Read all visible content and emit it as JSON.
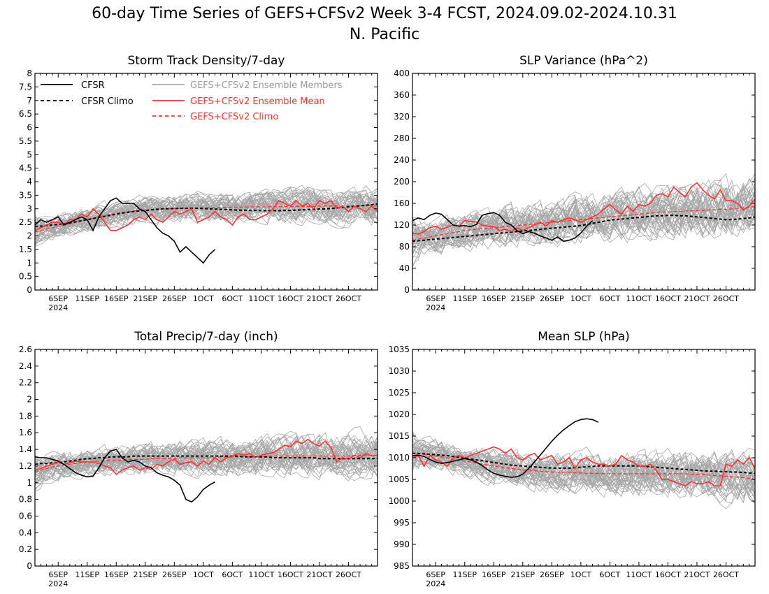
{
  "title_line1": "60-day Time Series of GEFS+CFSv2 Week 3-4 FCST, 2024.09.02-2024.10.31",
  "title_line2": "N. Pacific",
  "colors": {
    "cfsr": "#000000",
    "members": "#a6a6a6",
    "ens_mean": "#ff3030",
    "ens_climo": "#ff3030"
  },
  "legend": {
    "cfsr": "CFSR",
    "cfsr_climo": "CFSR Climo",
    "members": "GEFS+CFSv2 Ensemble Members",
    "ens_mean": "GEFS+CFSv2 Ensemble Mean",
    "ens_climo": "GEFS+CFSv2 Climo"
  },
  "x_tick_labels": [
    "6SEP",
    "11SEP",
    "16SEP",
    "21SEP",
    "26SEP",
    "1OCT",
    "6OCT",
    "11OCT",
    "16OCT",
    "21OCT",
    "26OCT"
  ],
  "x_tick_days": [
    4,
    9,
    14,
    19,
    24,
    29,
    34,
    39,
    44,
    49,
    54
  ],
  "x_year_label": "2024",
  "chart_data": [
    {
      "type": "line",
      "title": "Storm Track Density/7-day",
      "ylim": [
        0,
        8
      ],
      "yticks": [
        "0",
        "0.5",
        "1",
        "1.5",
        "2",
        "2.5",
        "3",
        "3.5",
        "4",
        "4.5",
        "5",
        "5.5",
        "6",
        "6.5",
        "7",
        "7.5",
        "8"
      ],
      "ytick_values": [
        0,
        0.5,
        1,
        1.5,
        2,
        2.5,
        3,
        3.5,
        4,
        4.5,
        5,
        5.5,
        6,
        6.5,
        7,
        7.5,
        8
      ],
      "cfsr_x": [
        0,
        1,
        2,
        3,
        4,
        5,
        6,
        7,
        8,
        9,
        10,
        11,
        12,
        13,
        14,
        15,
        16,
        17,
        18,
        19,
        20,
        21,
        22,
        23,
        24,
        25,
        26,
        27,
        28,
        29,
        30,
        31
      ],
      "cfsr": [
        2.4,
        2.6,
        2.5,
        2.6,
        2.7,
        2.4,
        2.5,
        2.6,
        2.7,
        2.6,
        2.2,
        2.7,
        3.0,
        3.3,
        3.4,
        3.2,
        3.2,
        3.2,
        3.0,
        2.9,
        2.6,
        2.3,
        2.1,
        2.0,
        1.8,
        1.4,
        1.6,
        1.4,
        1.2,
        1.0,
        1.3,
        1.5
      ],
      "cfsr_climo": [
        2.35,
        2.36,
        2.38,
        2.4,
        2.42,
        2.45,
        2.48,
        2.52,
        2.56,
        2.6,
        2.64,
        2.68,
        2.72,
        2.76,
        2.8,
        2.84,
        2.87,
        2.9,
        2.92,
        2.94,
        2.96,
        2.98,
        3.0,
        3.0,
        3.01,
        3.02,
        3.02,
        3.02,
        3.02,
        3.01,
        3.0,
        2.99,
        2.98,
        2.97,
        2.96,
        2.95,
        2.95,
        2.94,
        2.94,
        2.93,
        2.93,
        2.93,
        2.93,
        2.94,
        2.94,
        2.95,
        2.96,
        2.97,
        2.98,
        2.99,
        3.0,
        3.01,
        3.03,
        3.05,
        3.07,
        3.09,
        3.11,
        3.13,
        3.15,
        3.18
      ],
      "ens_mean": [
        2.2,
        2.3,
        2.4,
        2.5,
        2.5,
        2.4,
        2.6,
        2.6,
        2.8,
        2.7,
        3.0,
        2.8,
        2.5,
        2.2,
        2.2,
        2.3,
        2.4,
        2.6,
        2.7,
        2.6,
        2.8,
        2.6,
        2.5,
        2.7,
        2.9,
        2.8,
        2.9,
        3.0,
        2.5,
        2.6,
        2.7,
        2.9,
        2.7,
        2.6,
        2.4,
        2.7,
        2.8,
        2.6,
        2.6,
        2.7,
        2.8,
        3.0,
        3.3,
        3.2,
        3.1,
        3.3,
        3.1,
        3.2,
        3.0,
        3.3,
        3.2,
        3.3,
        3.0,
        3.1,
        2.9,
        3.1,
        3.0,
        2.9,
        3.1,
        2.9
      ],
      "ens_climo": [
        2.15,
        2.2,
        2.25,
        2.3,
        2.35,
        2.4,
        2.45,
        2.5,
        2.55,
        2.6,
        2.65,
        2.7,
        2.75,
        2.79,
        2.83,
        2.86,
        2.89,
        2.92,
        2.94,
        2.96,
        2.97,
        2.98,
        2.99,
        3.0,
        3.01,
        3.02,
        3.02,
        3.03,
        3.03,
        3.04,
        3.04,
        3.05,
        3.05,
        3.05,
        3.06,
        3.06,
        3.06,
        3.07,
        3.07,
        3.07,
        3.07,
        3.08,
        3.08,
        3.08,
        3.08,
        3.09,
        3.09,
        3.09,
        3.09,
        3.1,
        3.1,
        3.1,
        3.1,
        3.1,
        3.1,
        3.11,
        3.11,
        3.11,
        3.11,
        3.12
      ],
      "member_spread": [
        0.2,
        4.8
      ],
      "member_center": 2.75,
      "legend_position": "top-left"
    },
    {
      "type": "line",
      "title": "SLP Variance (hPa^2)",
      "ylim": [
        0,
        400
      ],
      "yticks": [
        "0",
        "40",
        "80",
        "120",
        "160",
        "200",
        "240",
        "280",
        "320",
        "360",
        "400"
      ],
      "ytick_values": [
        0,
        40,
        80,
        120,
        160,
        200,
        240,
        280,
        320,
        360,
        400
      ],
      "cfsr_x": [
        0,
        1,
        2,
        3,
        4,
        5,
        6,
        7,
        8,
        9,
        10,
        11,
        12,
        13,
        14,
        15,
        16,
        17,
        18,
        19,
        20,
        21,
        22,
        23,
        24,
        25,
        26,
        27,
        28,
        29,
        30,
        31
      ],
      "cfsr": [
        128,
        133,
        130,
        138,
        142,
        140,
        130,
        120,
        118,
        119,
        117,
        121,
        138,
        141,
        143,
        138,
        125,
        120,
        110,
        104,
        108,
        105,
        100,
        96,
        92,
        98,
        90,
        92,
        96,
        105,
        118,
        128
      ],
      "cfsr_climo": [
        90,
        91,
        92,
        93,
        94,
        95,
        96,
        97,
        98,
        99,
        100,
        101,
        102,
        103,
        104,
        105,
        106,
        107,
        108,
        109,
        110,
        111,
        112,
        113,
        114,
        115,
        116,
        117,
        118,
        119,
        121,
        123,
        125,
        127,
        129,
        130,
        131,
        132,
        133,
        134,
        135,
        136,
        137,
        137,
        138,
        138,
        137,
        137,
        136,
        135,
        134,
        133,
        132,
        131,
        130,
        130,
        131,
        132,
        133,
        135
      ],
      "ens_mean": [
        105,
        103,
        108,
        115,
        118,
        112,
        116,
        120,
        118,
        128,
        127,
        125,
        120,
        118,
        117,
        110,
        112,
        108,
        115,
        110,
        115,
        120,
        125,
        118,
        128,
        125,
        130,
        133,
        130,
        125,
        130,
        135,
        140,
        150,
        158,
        148,
        140,
        155,
        145,
        158,
        155,
        160,
        175,
        178,
        172,
        190,
        180,
        172,
        190,
        198,
        185,
        175,
        168,
        185,
        165,
        165,
        160,
        148,
        155,
        168
      ],
      "ens_climo": [
        92,
        94,
        96,
        98,
        100,
        102,
        104,
        106,
        108,
        110,
        111,
        112,
        113,
        114,
        115,
        116,
        117,
        118,
        119,
        120,
        121,
        122,
        123,
        124,
        125,
        126,
        127,
        128,
        129,
        130,
        131,
        132,
        133,
        134,
        135,
        136,
        137,
        138,
        139,
        140,
        141,
        142,
        143,
        144,
        144,
        145,
        145,
        146,
        146,
        147,
        147,
        148,
        148,
        149,
        149,
        150,
        151,
        152,
        153,
        154
      ],
      "member_spread": [
        40,
        400
      ],
      "member_center": 145,
      "legend_position": "none"
    },
    {
      "type": "line",
      "title": "Total Precip/7-day (inch)",
      "ylim": [
        0,
        2.6
      ],
      "yticks": [
        "0",
        "0.2",
        "0.4",
        "0.6",
        "0.8",
        "1",
        "1.2",
        "1.4",
        "1.6",
        "1.8",
        "2",
        "2.2",
        "2.4",
        "2.6"
      ],
      "ytick_values": [
        0,
        0.2,
        0.4,
        0.6,
        0.8,
        1.0,
        1.2,
        1.4,
        1.6,
        1.8,
        2.0,
        2.2,
        2.4,
        2.6
      ],
      "cfsr_x": [
        0,
        1,
        2,
        3,
        4,
        5,
        6,
        7,
        8,
        9,
        10,
        11,
        12,
        13,
        14,
        15,
        16,
        17,
        18,
        19,
        20,
        21,
        22,
        23,
        24,
        25,
        26,
        27,
        28,
        29,
        30,
        31
      ],
      "cfsr": [
        1.31,
        1.3,
        1.3,
        1.28,
        1.26,
        1.22,
        1.17,
        1.12,
        1.09,
        1.07,
        1.08,
        1.18,
        1.3,
        1.38,
        1.4,
        1.3,
        1.25,
        1.27,
        1.25,
        1.2,
        1.18,
        1.12,
        1.09,
        1.07,
        1.03,
        0.97,
        0.8,
        0.77,
        0.83,
        0.92,
        0.97,
        1.01
      ],
      "cfsr_climo": [
        1.22,
        1.23,
        1.23,
        1.24,
        1.24,
        1.25,
        1.26,
        1.27,
        1.28,
        1.29,
        1.29,
        1.3,
        1.3,
        1.31,
        1.31,
        1.31,
        1.31,
        1.32,
        1.32,
        1.32,
        1.32,
        1.32,
        1.32,
        1.32,
        1.32,
        1.32,
        1.32,
        1.32,
        1.32,
        1.32,
        1.32,
        1.32,
        1.32,
        1.32,
        1.32,
        1.32,
        1.31,
        1.31,
        1.31,
        1.31,
        1.31,
        1.3,
        1.3,
        1.3,
        1.3,
        1.3,
        1.3,
        1.3,
        1.3,
        1.29,
        1.29,
        1.29,
        1.29,
        1.29,
        1.29,
        1.29,
        1.29,
        1.29,
        1.29,
        1.29
      ],
      "ens_mean": [
        1.15,
        1.17,
        1.2,
        1.22,
        1.25,
        1.22,
        1.24,
        1.26,
        1.25,
        1.25,
        1.25,
        1.23,
        1.2,
        1.18,
        1.1,
        1.15,
        1.18,
        1.2,
        1.15,
        1.18,
        1.16,
        1.22,
        1.2,
        1.25,
        1.28,
        1.22,
        1.24,
        1.25,
        1.2,
        1.26,
        1.22,
        1.3,
        1.25,
        1.3,
        1.32,
        1.35,
        1.33,
        1.35,
        1.3,
        1.33,
        1.35,
        1.36,
        1.4,
        1.45,
        1.43,
        1.5,
        1.47,
        1.52,
        1.47,
        1.44,
        1.5,
        1.42,
        1.25,
        1.3,
        1.28,
        1.33,
        1.3,
        1.35,
        1.32,
        1.33
      ],
      "ens_climo": [
        1.13,
        1.15,
        1.17,
        1.19,
        1.2,
        1.21,
        1.22,
        1.23,
        1.24,
        1.25,
        1.25,
        1.26,
        1.26,
        1.27,
        1.27,
        1.27,
        1.28,
        1.28,
        1.28,
        1.28,
        1.29,
        1.29,
        1.29,
        1.29,
        1.29,
        1.3,
        1.3,
        1.3,
        1.3,
        1.3,
        1.3,
        1.3,
        1.31,
        1.31,
        1.31,
        1.31,
        1.31,
        1.31,
        1.31,
        1.31,
        1.32,
        1.32,
        1.32,
        1.32,
        1.32,
        1.32,
        1.32,
        1.32,
        1.32,
        1.32,
        1.32,
        1.32,
        1.32,
        1.32,
        1.32,
        1.33,
        1.33,
        1.33,
        1.33,
        1.33
      ],
      "member_spread": [
        0.55,
        2.3
      ],
      "member_center": 1.3,
      "legend_position": "none"
    },
    {
      "type": "line",
      "title": "Mean SLP (hPa)",
      "ylim": [
        985,
        1035
      ],
      "yticks": [
        "985",
        "990",
        "995",
        "1000",
        "1005",
        "1010",
        "1015",
        "1020",
        "1025",
        "1030",
        "1035"
      ],
      "ytick_values": [
        985,
        990,
        995,
        1000,
        1005,
        1010,
        1015,
        1020,
        1025,
        1030,
        1035
      ],
      "cfsr_x": [
        0,
        1,
        2,
        3,
        4,
        5,
        6,
        7,
        8,
        9,
        10,
        11,
        12,
        13,
        14,
        15,
        16,
        17,
        18,
        19,
        20,
        21,
        22,
        23,
        24,
        25,
        26,
        27,
        28,
        29,
        30,
        31,
        32
      ],
      "cfsr": [
        1010.5,
        1010.6,
        1010.3,
        1009.6,
        1009.0,
        1008.7,
        1008.9,
        1009.2,
        1009.5,
        1009.8,
        1009.5,
        1009.0,
        1008.2,
        1007.2,
        1006.4,
        1006.0,
        1005.7,
        1005.5,
        1005.6,
        1006.2,
        1007.5,
        1009.0,
        1010.6,
        1012.2,
        1013.8,
        1015.2,
        1016.4,
        1017.4,
        1018.3,
        1018.8,
        1019.0,
        1018.8,
        1018.2
      ],
      "cfsr_climo": [
        1011.0,
        1011.0,
        1010.9,
        1010.8,
        1010.7,
        1010.6,
        1010.5,
        1010.3,
        1010.1,
        1009.9,
        1009.7,
        1009.5,
        1009.3,
        1009.1,
        1008.9,
        1008.7,
        1008.5,
        1008.3,
        1008.2,
        1008.1,
        1008.0,
        1007.9,
        1007.8,
        1007.7,
        1007.6,
        1007.6,
        1007.6,
        1007.6,
        1007.7,
        1007.8,
        1007.9,
        1008.0,
        1008.1,
        1008.1,
        1008.1,
        1008.1,
        1008.1,
        1008.1,
        1008.1,
        1008.1,
        1008.0,
        1007.9,
        1007.8,
        1007.7,
        1007.6,
        1007.5,
        1007.4,
        1007.3,
        1007.2,
        1007.1,
        1007.0,
        1006.9,
        1006.9,
        1006.8,
        1006.8,
        1006.7,
        1006.7,
        1006.6,
        1006.5,
        1006.4
      ],
      "ens_mean": [
        1010.0,
        1010.5,
        1008.0,
        1010.5,
        1009.5,
        1009.0,
        1008.0,
        1010.0,
        1010.5,
        1010.0,
        1010.5,
        1011.0,
        1011.5,
        1012.0,
        1012.5,
        1012.0,
        1011.0,
        1012.0,
        1010.0,
        1009.5,
        1010.5,
        1011.0,
        1009.5,
        1010.0,
        1010.5,
        1008.5,
        1009.0,
        1010.0,
        1007.5,
        1009.5,
        1010.0,
        1009.0,
        1008.5,
        1008.5,
        1008.0,
        1008.5,
        1010.5,
        1009.5,
        1009.0,
        1008.0,
        1008.0,
        1008.5,
        1007.0,
        1005.0,
        1005.0,
        1004.5,
        1004.0,
        1003.5,
        1004.5,
        1004.0,
        1004.0,
        1004.5,
        1003.5,
        1003.5,
        1008.5,
        1008.0,
        1009.5,
        1008.5,
        1010.0,
        1007.5
      ],
      "ens_climo": [
        1011.0,
        1010.9,
        1010.8,
        1010.6,
        1010.4,
        1010.2,
        1010.0,
        1009.7,
        1009.5,
        1009.2,
        1009.0,
        1008.8,
        1008.5,
        1008.3,
        1008.1,
        1007.9,
        1007.7,
        1007.5,
        1007.4,
        1007.2,
        1007.1,
        1007.0,
        1006.9,
        1006.8,
        1006.7,
        1006.7,
        1006.6,
        1006.6,
        1006.5,
        1006.5,
        1006.4,
        1006.4,
        1006.4,
        1006.3,
        1006.3,
        1006.3,
        1006.3,
        1006.3,
        1006.3,
        1006.3,
        1006.3,
        1006.3,
        1006.3,
        1006.3,
        1006.3,
        1006.3,
        1006.3,
        1006.3,
        1006.2,
        1006.2,
        1006.1,
        1006.0,
        1005.9,
        1005.8,
        1005.7,
        1005.6,
        1005.5,
        1005.4,
        1005.2,
        1005.0
      ],
      "member_spread": [
        988,
        1026
      ],
      "member_center": 1008,
      "legend_position": "none"
    }
  ]
}
